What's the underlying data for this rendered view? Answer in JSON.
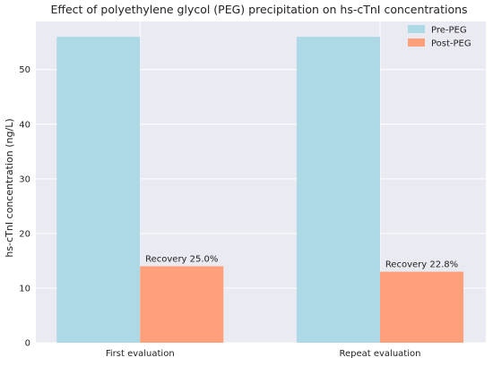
{
  "chart_data": {
    "type": "bar",
    "title": "Effect of polyethylene glycol (PEG) precipitation on hs-cTnI concentrations",
    "xlabel": "",
    "ylabel": "hs-cTnI concentration (ng/L)",
    "categories": [
      "First evaluation",
      "Repeat evaluation"
    ],
    "series": [
      {
        "name": "Pre-PEG",
        "values": [
          56,
          56
        ],
        "color": "#add8e6"
      },
      {
        "name": "Post-PEG",
        "values": [
          14,
          13
        ],
        "color": "#ffa07a"
      }
    ],
    "annotations": [
      "Recovery 25.0%",
      "Recovery 22.8%"
    ],
    "ylim": [
      0,
      58.8
    ],
    "yticks": [
      0,
      10,
      20,
      30,
      40,
      50
    ],
    "grid": true,
    "legend_position": "top-right",
    "background_color": "#eaeaf2"
  }
}
